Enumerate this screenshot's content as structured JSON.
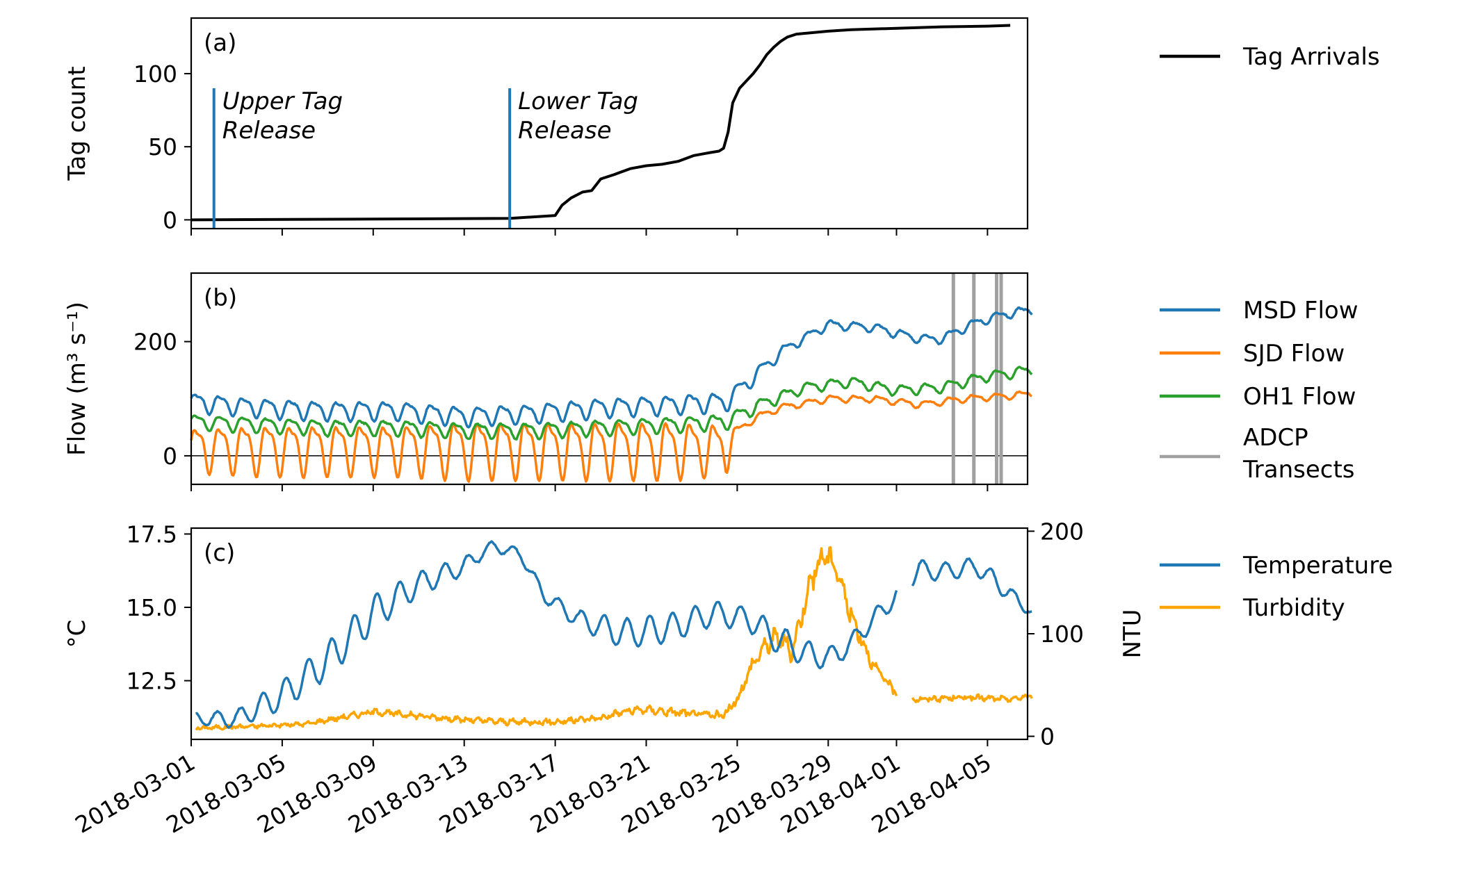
{
  "x_ticks": [
    "2018-03-01",
    "2018-03-05",
    "2018-03-09",
    "2018-03-13",
    "2018-03-17",
    "2018-03-21",
    "2018-03-25",
    "2018-03-29",
    "2018-04-01",
    "2018-04-05"
  ],
  "chart_data": [
    {
      "type": "line",
      "panel": "(a)",
      "ylabel": "Tag count",
      "x_range": [
        "2018-03-01",
        "2018-04-07"
      ],
      "ylim": [
        -6,
        138
      ],
      "yticks": [
        "0",
        "50",
        "100"
      ],
      "legend": [
        "Tag Arrivals"
      ],
      "series": [
        {
          "name": "Tag Arrivals",
          "color": "#000000",
          "x": [
            "2018-03-01",
            "2018-03-15",
            "2018-03-17",
            "2018-03-17.3",
            "2018-03-17.7",
            "2018-03-18.2",
            "2018-03-18.6",
            "2018-03-19",
            "2018-03-19.6",
            "2018-03-20.3",
            "2018-03-21",
            "2018-03-21.7",
            "2018-03-22.4",
            "2018-03-23.1",
            "2018-03-23.8",
            "2018-03-24.2",
            "2018-03-24.4",
            "2018-03-24.6",
            "2018-03-24.8",
            "2018-03-25.1",
            "2018-03-25.4",
            "2018-03-25.7",
            "2018-03-26",
            "2018-03-26.3",
            "2018-03-26.6",
            "2018-03-26.9",
            "2018-03-27.2",
            "2018-03-27.6",
            "2018-03-28.3",
            "2018-03-29",
            "2018-03-30",
            "2018-04-01",
            "2018-04-03",
            "2018-04-05",
            "2018-04-06"
          ],
          "y": [
            0,
            1,
            3,
            10,
            15,
            19,
            20,
            28,
            31,
            35,
            37,
            38,
            40,
            44,
            46,
            47,
            49,
            60,
            80,
            90,
            95,
            100,
            106,
            113,
            118,
            122,
            125,
            127,
            128,
            129,
            130,
            131,
            132,
            132.5,
            133
          ]
        }
      ],
      "annotations": [
        {
          "x": "2018-03-02",
          "ymax": 90,
          "text": [
            "Upper Tag",
            "Release"
          ]
        },
        {
          "x": "2018-03-15",
          "ymax": 90,
          "text": [
            "Lower Tag",
            "Release"
          ]
        }
      ]
    },
    {
      "type": "line",
      "panel": "(b)",
      "ylabel": "Flow (m³ s⁻¹)",
      "x_range": [
        "2018-03-01",
        "2018-04-07"
      ],
      "ylim": [
        -50,
        320
      ],
      "yticks": [
        "0",
        "200"
      ],
      "zero_line": true,
      "legend": [
        "MSD Flow",
        "SJD Flow",
        "OH1 Flow",
        "ADCP Transects"
      ],
      "series": [
        {
          "name": "MSD Flow",
          "color": "#1f77b4",
          "x_days": [
            0,
            3,
            6,
            9,
            12,
            15,
            18,
            21,
            23.5,
            24.5,
            26,
            28,
            30,
            32,
            33,
            34,
            35,
            36,
            37
          ],
          "y": [
            95,
            85,
            80,
            80,
            70,
            75,
            85,
            90,
            95,
            130,
            185,
            230,
            225,
            205,
            205,
            225,
            240,
            250,
            255
          ],
          "tidal_amp": [
            15,
            15,
            15,
            15,
            15,
            15,
            15,
            15,
            15,
            12,
            8,
            7,
            7,
            7,
            7,
            7,
            7,
            7,
            7
          ]
        },
        {
          "name": "SJD Flow",
          "color": "#ff7f0e",
          "x_days": [
            0,
            3,
            6,
            9,
            12,
            15,
            18,
            21,
            23.5,
            24,
            25,
            26,
            28,
            30,
            32,
            34,
            36,
            37
          ],
          "y": [
            15,
            15,
            15,
            15,
            15,
            15,
            15,
            15,
            15,
            45,
            70,
            85,
            100,
            100,
            90,
            100,
            105,
            110
          ],
          "tidal_amp": [
            35,
            40,
            40,
            40,
            45,
            45,
            45,
            45,
            40,
            5,
            5,
            5,
            5,
            5,
            5,
            5,
            5,
            5
          ]
        },
        {
          "name": "OH1 Flow",
          "color": "#2ca02c",
          "x_days": [
            0,
            3,
            6,
            9,
            12,
            15,
            18,
            21,
            23.5,
            25,
            27,
            29,
            31,
            33,
            35,
            37
          ],
          "y": [
            60,
            55,
            50,
            50,
            45,
            45,
            50,
            55,
            60,
            90,
            120,
            130,
            115,
            120,
            140,
            150
          ],
          "tidal_amp": [
            12,
            12,
            12,
            12,
            12,
            12,
            12,
            12,
            12,
            10,
            8,
            8,
            8,
            8,
            8,
            8
          ]
        },
        {
          "name": "ADCP Transects",
          "color": "#a0a0a0",
          "x": [
            "2018-04-03.5",
            "2018-04-04.4",
            "2018-04-05.4",
            "2018-04-05.6"
          ]
        }
      ]
    },
    {
      "type": "line",
      "panel": "(c)",
      "ylabel": "°C",
      "ylabel_right": "NTU",
      "x_range": [
        "2018-03-01",
        "2018-04-07"
      ],
      "ylim": [
        10.5,
        17.7
      ],
      "ylim_right": [
        -3,
        203
      ],
      "yticks": [
        "12.5",
        "15.0",
        "17.5"
      ],
      "yticks_right": [
        "0",
        "100",
        "200"
      ],
      "legend": [
        "Temperature",
        "Turbidity"
      ],
      "series": [
        {
          "name": "Temperature",
          "color": "#1f77b4",
          "axis": "left",
          "x_days": [
            0.2,
            2,
            4,
            6,
            8,
            10,
            12,
            13.2,
            14.5,
            15.5,
            17,
            19,
            21,
            23,
            24.5,
            26,
            27.5,
            28.5,
            29.5,
            31,
            32,
            33,
            34.5,
            35.5,
            36.5,
            37
          ],
          "y": [
            11.2,
            11.2,
            12,
            13.2,
            14.8,
            15.8,
            16.4,
            17.1,
            16.8,
            15.4,
            14.6,
            14.1,
            14.3,
            14.8,
            14.6,
            13.8,
            13.3,
            13.4,
            14.2,
            15.4,
            16.3,
            16.2,
            16.4,
            15.8,
            15.1,
            14.8
          ],
          "diurnal_amp": [
            0.2,
            0.3,
            0.5,
            0.6,
            0.6,
            0.4,
            0.3,
            0.15,
            0.2,
            0.2,
            0.3,
            0.5,
            0.5,
            0.4,
            0.4,
            0.5,
            0.4,
            0.3,
            0.3,
            0.3,
            0.3,
            0.3,
            0.3,
            0.3,
            0.2,
            0.1
          ]
        },
        {
          "name": "Turbidity",
          "color": "#ffa500",
          "axis": "right",
          "x_days": [
            0.2,
            3,
            5,
            7,
            8,
            10,
            12,
            14,
            16,
            18,
            19,
            20,
            22,
            23.4,
            24,
            24.7,
            25.3,
            25.8,
            26.4,
            27.2,
            27.8,
            28.3,
            29,
            30,
            31,
            31.4,
            32,
            34,
            36,
            37
          ],
          "y": [
            8,
            10,
            12,
            20,
            24,
            20,
            16,
            14,
            14,
            18,
            24,
            26,
            22,
            20,
            36,
            72,
            90,
            98,
            82,
            150,
            178,
            168,
            118,
            68,
            42,
            38,
            36,
            38,
            36,
            40
          ],
          "noise_amp": [
            2,
            2,
            2,
            3,
            3,
            3,
            3,
            3,
            3,
            3,
            4,
            4,
            4,
            4,
            5,
            8,
            10,
            10,
            10,
            12,
            12,
            12,
            10,
            6,
            4,
            3,
            3,
            3,
            3,
            3
          ]
        }
      ]
    }
  ]
}
